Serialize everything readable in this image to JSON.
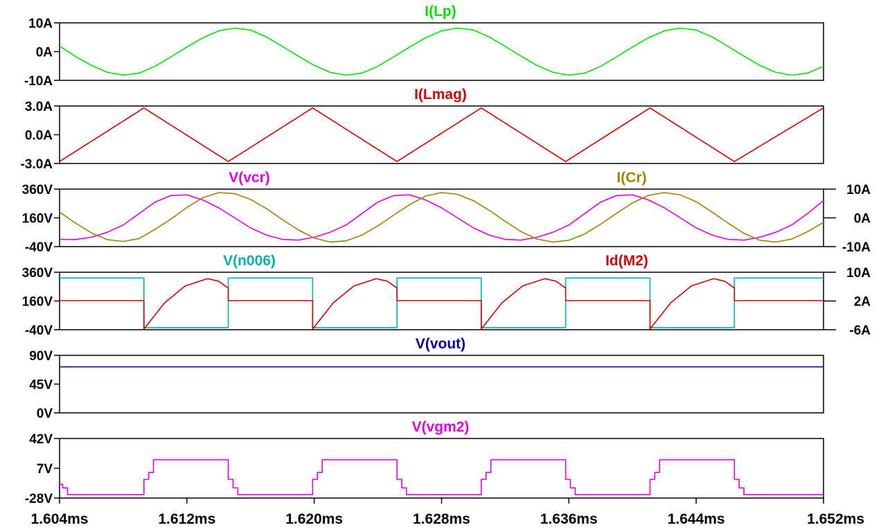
{
  "chart_data": {
    "type": "line",
    "x_axis": {
      "unit": "ms",
      "range": [
        1.604,
        1.652
      ],
      "ticks": [
        1.604,
        1.612,
        1.62,
        1.628,
        1.636,
        1.644,
        1.652
      ],
      "tick_labels": [
        "1.604ms",
        "1.612ms",
        "1.620ms",
        "1.628ms",
        "1.636ms",
        "1.644ms",
        "1.652ms"
      ]
    },
    "panes": [
      {
        "left_axis": {
          "range": [
            -10,
            10
          ],
          "ticks": [
            10,
            0,
            -10
          ],
          "tick_labels": [
            "10A",
            "0A",
            "-10A"
          ]
        },
        "series": [
          {
            "name": "I(Lp)",
            "color": "#00e000",
            "axis": "left",
            "x": [
              1.604,
              1.605,
              1.606,
              1.607,
              1.608,
              1.609,
              1.61,
              1.611,
              1.612,
              1.613,
              1.614,
              1.615,
              1.616,
              1.617,
              1.618,
              1.619,
              1.62,
              1.621,
              1.622,
              1.623,
              1.624,
              1.625,
              1.626,
              1.627,
              1.628,
              1.629,
              1.63,
              1.631,
              1.632,
              1.633,
              1.634,
              1.635,
              1.636,
              1.637,
              1.638,
              1.639,
              1.64,
              1.641,
              1.642,
              1.643,
              1.644,
              1.645,
              1.646,
              1.647,
              1.648,
              1.649,
              1.65,
              1.651,
              1.652
            ],
            "y": [
              1.9,
              -1.7,
              -4.8,
              -7.2,
              -8.2,
              -7.5,
              -5.1,
              -1.8,
              1.6,
              4.8,
              7.2,
              8.2,
              7.5,
              5.1,
              1.8,
              -1.6,
              -4.8,
              -7.2,
              -8.2,
              -7.5,
              -5.1,
              -1.8,
              1.6,
              4.8,
              7.2,
              8.2,
              7.5,
              5.1,
              1.8,
              -1.6,
              -4.8,
              -7.2,
              -8.2,
              -7.5,
              -5.1,
              -1.8,
              1.6,
              4.8,
              7.2,
              8.2,
              7.5,
              5.1,
              1.8,
              -1.6,
              -4.8,
              -7.2,
              -8.2,
              -7.5,
              -5.1
            ]
          }
        ]
      },
      {
        "left_axis": {
          "range": [
            -3,
            3
          ],
          "ticks": [
            3,
            0,
            -3
          ],
          "tick_labels": [
            "3.0A",
            "0.0A",
            "-3.0A"
          ]
        },
        "series": [
          {
            "name": "I(Lmag)",
            "color": "#d00000",
            "axis": "left",
            "x": [
              1.604,
              1.6093,
              1.6146,
              1.6199,
              1.6252,
              1.6305,
              1.6358,
              1.6411,
              1.6464,
              1.652
            ],
            "y": [
              -2.8,
              2.8,
              -2.8,
              2.8,
              -2.8,
              2.8,
              -2.8,
              2.8,
              -2.8,
              2.8
            ]
          }
        ]
      },
      {
        "left_axis": {
          "range": [
            -40,
            360
          ],
          "ticks": [
            360,
            160,
            -40
          ],
          "tick_labels": [
            "360V",
            "160V",
            "-40V"
          ]
        },
        "right_axis": {
          "range": [
            -10,
            10
          ],
          "ticks": [
            10,
            0,
            -10
          ],
          "tick_labels": [
            "10A",
            "0A",
            "-10A"
          ]
        },
        "series": [
          {
            "name": "V(vcr)",
            "color": "#e000e0",
            "axis": "left",
            "x": [
              1.604,
              1.605,
              1.606,
              1.607,
              1.608,
              1.609,
              1.61,
              1.611,
              1.612,
              1.613,
              1.614,
              1.615,
              1.616,
              1.617,
              1.618,
              1.619,
              1.62,
              1.621,
              1.622,
              1.623,
              1.624,
              1.625,
              1.626,
              1.627,
              1.628,
              1.629,
              1.63,
              1.631,
              1.632,
              1.633,
              1.634,
              1.635,
              1.636,
              1.637,
              1.638,
              1.639,
              1.64,
              1.641,
              1.642,
              1.643,
              1.644,
              1.645,
              1.646,
              1.647,
              1.648,
              1.649,
              1.65,
              1.651,
              1.652
            ],
            "y": [
              10,
              9,
              25,
              60,
              110,
              190,
              270,
              315,
              320,
              285,
              230,
              160,
              90,
              40,
              10,
              5,
              25,
              60,
              110,
              190,
              270,
              315,
              320,
              285,
              230,
              160,
              90,
              40,
              10,
              5,
              25,
              60,
              110,
              190,
              270,
              315,
              320,
              285,
              230,
              160,
              90,
              40,
              10,
              5,
              25,
              60,
              110,
              190,
              280
            ]
          },
          {
            "name": "I(Cr)",
            "color": "#a08000",
            "axis": "right",
            "x": [
              1.604,
              1.605,
              1.606,
              1.607,
              1.608,
              1.609,
              1.61,
              1.611,
              1.612,
              1.613,
              1.614,
              1.615,
              1.616,
              1.617,
              1.618,
              1.619,
              1.62,
              1.621,
              1.622,
              1.623,
              1.624,
              1.625,
              1.626,
              1.627,
              1.628,
              1.629,
              1.63,
              1.631,
              1.632,
              1.633,
              1.634,
              1.635,
              1.636,
              1.637,
              1.638,
              1.639,
              1.64,
              1.641,
              1.642,
              1.643,
              1.644,
              1.645,
              1.646,
              1.647,
              1.648,
              1.649,
              1.65,
              1.651,
              1.652
            ],
            "y": [
              2.0,
              -1.8,
              -5.2,
              -7.6,
              -8.2,
              -7.2,
              -4.0,
              -0.4,
              3.6,
              7.0,
              8.8,
              8.4,
              6.4,
              3.2,
              -0.6,
              -4.2,
              -7.0,
              -8.4,
              -8.0,
              -6.0,
              -2.8,
              1.0,
              4.6,
              7.6,
              8.8,
              8.2,
              6.0,
              2.6,
              -1.2,
              -4.8,
              -7.4,
              -8.4,
              -7.8,
              -5.6,
              -2.2,
              1.6,
              5.2,
              7.8,
              8.8,
              8.0,
              5.6,
              2.0,
              -1.8,
              -5.4,
              -7.8,
              -8.4,
              -7.4,
              -4.8,
              -1.6
            ]
          }
        ]
      },
      {
        "left_axis": {
          "range": [
            -40,
            360
          ],
          "ticks": [
            360,
            160,
            -40
          ],
          "tick_labels": [
            "360V",
            "160V",
            "-40V"
          ]
        },
        "right_axis": {
          "range": [
            -6,
            10
          ],
          "ticks": [
            10,
            2,
            -6
          ],
          "tick_labels": [
            "10A",
            "2A",
            "-6A"
          ]
        },
        "series": [
          {
            "name": "V(n006)",
            "color": "#00b0b0",
            "axis": "left",
            "x": [
              1.604,
              1.6093,
              1.6093,
              1.6146,
              1.6146,
              1.6199,
              1.6199,
              1.6252,
              1.6252,
              1.6305,
              1.6305,
              1.6358,
              1.6358,
              1.6411,
              1.6411,
              1.6464,
              1.6464,
              1.652
            ],
            "y": [
              320,
              320,
              -25,
              -25,
              320,
              320,
              -25,
              -25,
              320,
              320,
              -25,
              -25,
              320,
              320,
              -25,
              -25,
              320,
              320
            ]
          },
          {
            "name": "Id(M2)",
            "color": "#d00000",
            "axis": "right",
            "x": [
              1.604,
              1.6093,
              1.6093,
              1.6106,
              1.6119,
              1.6133,
              1.614,
              1.6146,
              1.6146,
              1.6199,
              1.6199,
              1.6212,
              1.6225,
              1.6239,
              1.6246,
              1.6252,
              1.6252,
              1.6305,
              1.6305,
              1.6318,
              1.6331,
              1.6345,
              1.6352,
              1.6358,
              1.6358,
              1.6411,
              1.6411,
              1.6424,
              1.6437,
              1.6451,
              1.6458,
              1.6464,
              1.6464,
              1.652
            ],
            "y": [
              2.1,
              2.1,
              -5.8,
              1.5,
              6.2,
              8.2,
              7.5,
              5.6,
              2.1,
              2.1,
              -5.8,
              1.5,
              6.2,
              8.2,
              7.5,
              5.6,
              2.1,
              2.1,
              -5.8,
              1.5,
              6.2,
              8.2,
              7.5,
              5.6,
              2.1,
              2.1,
              -5.8,
              1.5,
              6.2,
              8.2,
              7.5,
              5.6,
              2.1,
              2.1
            ]
          }
        ]
      },
      {
        "left_axis": {
          "range": [
            0,
            90
          ],
          "ticks": [
            90,
            45,
            0
          ],
          "tick_labels": [
            "90V",
            "45V",
            "0V"
          ]
        },
        "series": [
          {
            "name": "V(vout)",
            "color": "#0000a0",
            "axis": "left",
            "x": [
              1.604,
              1.652
            ],
            "y": [
              72,
              72
            ]
          }
        ]
      },
      {
        "left_axis": {
          "range": [
            -28,
            42
          ],
          "ticks": [
            42,
            7,
            -28
          ],
          "tick_labels": [
            "42V",
            "7V",
            "-28V"
          ]
        },
        "series": [
          {
            "name": "V(vgm2)",
            "color": "#e000e0",
            "axis": "left",
            "x": [
              1.604,
              1.6042,
              1.6042,
              1.6045,
              1.6045,
              1.6093,
              1.6093,
              1.6096,
              1.6096,
              1.6099,
              1.6099,
              1.6146,
              1.6146,
              1.6149,
              1.6149,
              1.6152,
              1.6152,
              1.6199,
              1.6199,
              1.6202,
              1.6202,
              1.6205,
              1.6205,
              1.6252,
              1.6252,
              1.6255,
              1.6255,
              1.6258,
              1.6258,
              1.6305,
              1.6305,
              1.6308,
              1.6308,
              1.6311,
              1.6311,
              1.6358,
              1.6358,
              1.6361,
              1.6361,
              1.6364,
              1.6364,
              1.6411,
              1.6411,
              1.6414,
              1.6414,
              1.6417,
              1.6417,
              1.6464,
              1.6464,
              1.6467,
              1.6467,
              1.647,
              1.647,
              1.652
            ],
            "y": [
              -12,
              -12,
              -16,
              -16,
              -24,
              -24,
              -6,
              -6,
              2,
              2,
              17,
              17,
              -6,
              -6,
              -16,
              -16,
              -24,
              -24,
              -6,
              -6,
              2,
              2,
              17,
              17,
              -6,
              -6,
              -16,
              -16,
              -24,
              -24,
              -6,
              -6,
              2,
              2,
              17,
              17,
              -6,
              -6,
              -16,
              -16,
              -24,
              -24,
              -6,
              -6,
              2,
              2,
              17,
              17,
              -6,
              -6,
              -16,
              -16,
              -24,
              -24
            ]
          }
        ]
      }
    ]
  }
}
